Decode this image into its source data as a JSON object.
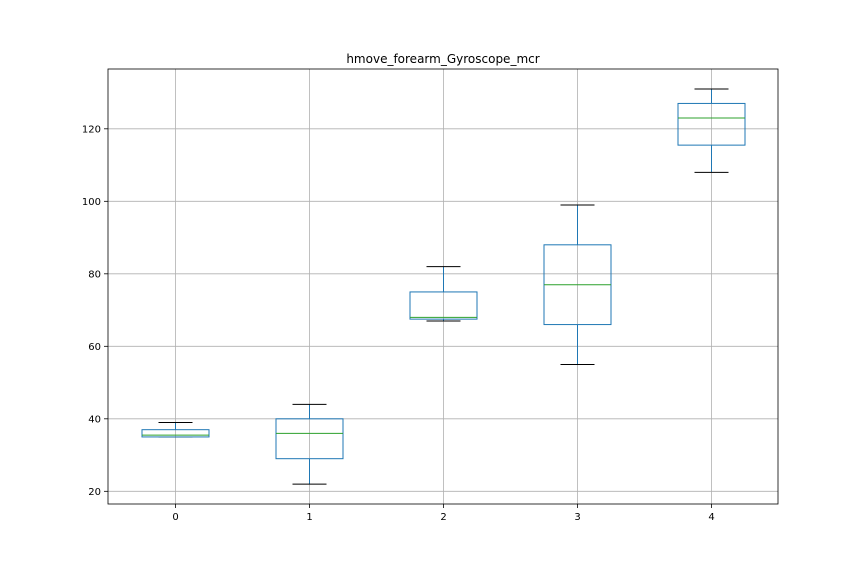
{
  "chart_data": {
    "type": "box",
    "title": "hmove_forearm_Gyroscope_mcr",
    "xlabel": "",
    "ylabel": "",
    "categories": [
      "0",
      "1",
      "2",
      "3",
      "4"
    ],
    "boxes": [
      {
        "category": "0",
        "whisker_low": 35,
        "q1": 35,
        "median": 35.5,
        "q3": 37,
        "whisker_high": 39
      },
      {
        "category": "1",
        "whisker_low": 22,
        "q1": 29,
        "median": 36,
        "q3": 40,
        "whisker_high": 44
      },
      {
        "category": "2",
        "whisker_low": 67,
        "q1": 67.5,
        "median": 68,
        "q3": 75,
        "whisker_high": 82
      },
      {
        "category": "3",
        "whisker_low": 55,
        "q1": 66,
        "median": 77,
        "q3": 88,
        "whisker_high": 99
      },
      {
        "category": "4",
        "whisker_low": 108,
        "q1": 115.5,
        "median": 123,
        "q3": 127,
        "whisker_high": 131
      }
    ],
    "yticks": [
      20,
      40,
      60,
      80,
      100,
      120
    ],
    "ylim": [
      16.5,
      136.5
    ],
    "grid": true,
    "colors": {
      "box": "#1f77b4",
      "median": "#2ca02c",
      "whisker": "#000000",
      "grid": "#b0b0b0"
    }
  }
}
